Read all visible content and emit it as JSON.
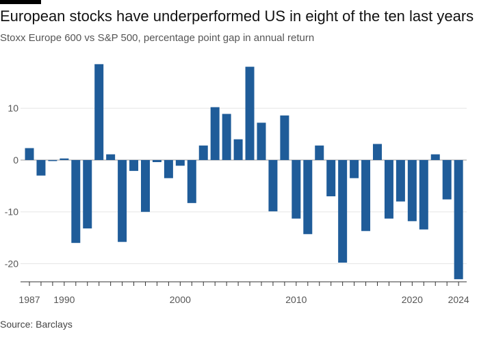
{
  "title": "European stocks have underperformed US in eight of the ten last years",
  "subtitle": "Stoxx Europe 600 vs S&P 500, percentage point gap in annual return",
  "source": "Source: Barclays",
  "colors": {
    "bar": "#1f5c99",
    "grid": "#e6e6e6",
    "zero_line": "#999999",
    "axis": "#333333",
    "text": "#555555"
  },
  "chart_data": {
    "type": "bar",
    "title": "European stocks have underperformed US in eight of the ten last years",
    "subtitle": "Stoxx Europe 600 vs S&P 500, percentage point gap in annual return",
    "xlabel": "",
    "ylabel": "",
    "ylim": [
      -23.5,
      19
    ],
    "yticks": [
      10,
      0,
      -10,
      -20
    ],
    "ytick_labels": [
      "10",
      "0",
      "-10",
      "-20"
    ],
    "xticks": [
      1987,
      1990,
      2000,
      2010,
      2020,
      2024
    ],
    "xtick_labels": [
      "1987",
      "1990",
      "2000",
      "2010",
      "2020",
      "2024"
    ],
    "grid": true,
    "legend": "none",
    "categories": [
      1987,
      1988,
      1989,
      1990,
      1991,
      1992,
      1993,
      1994,
      1995,
      1996,
      1997,
      1998,
      1999,
      2000,
      2001,
      2002,
      2003,
      2004,
      2005,
      2006,
      2007,
      2008,
      2009,
      2010,
      2011,
      2012,
      2013,
      2014,
      2015,
      2016,
      2017,
      2018,
      2019,
      2020,
      2021,
      2022,
      2023,
      2024
    ],
    "values": [
      2.3,
      -3.0,
      -0.2,
      0.3,
      -16.0,
      -13.2,
      18.5,
      1.1,
      -15.8,
      -2.1,
      -10.0,
      -0.4,
      -3.5,
      -1.1,
      -8.3,
      2.8,
      10.2,
      8.9,
      4.0,
      18.0,
      7.2,
      -9.9,
      8.6,
      -11.3,
      -14.3,
      2.8,
      -7.0,
      -19.8,
      -3.5,
      -13.7,
      3.1,
      -11.3,
      -8.0,
      -11.8,
      -13.4,
      1.1,
      -7.6,
      -23.0
    ]
  }
}
